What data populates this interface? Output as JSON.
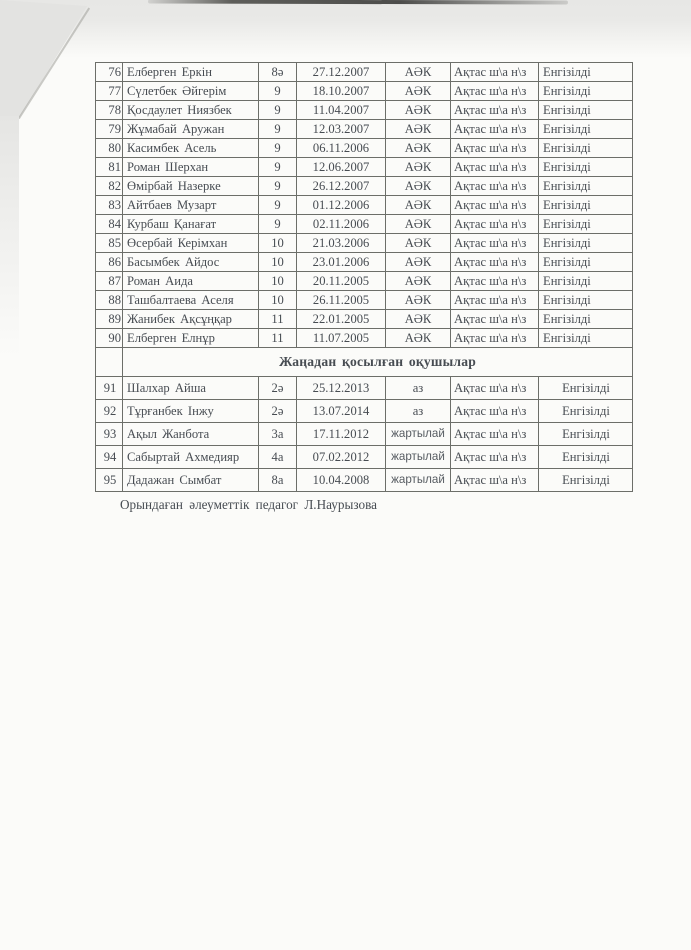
{
  "colors": {
    "paper": "#fbfbf9",
    "scanner_gray": "#e6e6e4",
    "ink": "#474c52",
    "line": "#6c6e69"
  },
  "table": {
    "section_header": "Жаңадан қосылған  оқушылар",
    "rows_upper": [
      [
        "76",
        "Елберген Еркін",
        "8ә",
        "27.12.2007",
        "АӘК",
        "Ақтас ш\\а н\\з",
        "Енгізілді"
      ],
      [
        "77",
        "Сүлетбек  Әйгерім",
        "9",
        "18.10.2007",
        "АӘК",
        "Ақтас ш\\а н\\з",
        "Енгізілді"
      ],
      [
        "78",
        "Қосдаулет  Ниязбек",
        "9",
        "11.04.2007",
        "АӘК",
        "Ақтас ш\\а н\\з",
        "Енгізілді"
      ],
      [
        "79",
        "Жұмабай Аружан",
        "9",
        "12.03.2007",
        "АӘК",
        "Ақтас ш\\а н\\з",
        "Енгізілді"
      ],
      [
        "80",
        "Касимбек  Асель",
        "9",
        "06.11.2006",
        "АӘК",
        "Ақтас ш\\а н\\з",
        "Енгізілді"
      ],
      [
        "81",
        "Роман  Шерхан",
        "9",
        "12.06.2007",
        "АӘК",
        "Ақтас ш\\а н\\з",
        "Енгізілді"
      ],
      [
        "82",
        "Өмірбай Назерке",
        "9",
        "26.12.2007",
        "АӘК",
        "Ақтас ш\\а н\\з",
        "Енгізілді"
      ],
      [
        "83",
        "Айтбаев  Музарт",
        "9",
        "01.12.2006",
        "АӘК",
        "Ақтас ш\\а н\\з",
        "Енгізілді"
      ],
      [
        "84",
        "Курбаш  Қанағат",
        "9",
        "02.11.2006",
        "АӘК",
        "Ақтас ш\\а н\\з",
        "Енгізілді"
      ],
      [
        "85",
        "Өсербай  Керімхан",
        "10",
        "21.03.2006",
        "АӘК",
        "Ақтас ш\\а н\\з",
        "Енгізілді"
      ],
      [
        "86",
        "Басымбек  Айдос",
        "10",
        "23.01.2006",
        "АӘК",
        "Ақтас ш\\а н\\з",
        "Енгізілді"
      ],
      [
        "87",
        "Роман  Аида",
        "10",
        "20.11.2005",
        "АӘК",
        "Ақтас ш\\а н\\з",
        "Енгізілді"
      ],
      [
        "88",
        "Ташбалтаева  Аселя",
        "10",
        "26.11.2005",
        "АӘК",
        "Ақтас ш\\а н\\з",
        "Енгізілді"
      ],
      [
        "89",
        "Жанибек  Ақсұңқар",
        "11",
        "22.01.2005",
        "АӘК",
        "Ақтас ш\\а н\\з",
        "Енгізілді"
      ],
      [
        "90",
        "Елберген  Елнұр",
        "11",
        "11.07.2005",
        "АӘК",
        "Ақтас ш\\а н\\з",
        "Енгізілді"
      ]
    ],
    "rows_lower": [
      [
        "91",
        "Шалхар  Айша",
        "2ә",
        "25.12.2013",
        "аз",
        "Ақтас ш\\а н\\з",
        "Енгізілді"
      ],
      [
        "92",
        "Тұрғанбек  Інжу",
        "2ә",
        "13.07.2014",
        "аз",
        "Ақтас ш\\а н\\з",
        "Енгізілді"
      ],
      [
        "93",
        "Ақыл  Жанбота",
        "3а",
        "17.11.2012",
        "жартылай",
        "Ақтас ш\\а н\\з",
        "Енгізілді"
      ],
      [
        "94",
        "Сабыртай Ахмедияр",
        "4а",
        "07.02.2012",
        "жартылай",
        "Ақтас ш\\а н\\з",
        "Енгізілді"
      ],
      [
        "95",
        "Дадажан  Сымбат",
        "8а",
        "10.04.2008",
        "жартылай",
        "Ақтас ш\\а н\\з",
        "Енгізілді"
      ]
    ]
  },
  "footer": {
    "text": "Орындаған  әлеуметтік педагог  Л.Наурызова"
  }
}
